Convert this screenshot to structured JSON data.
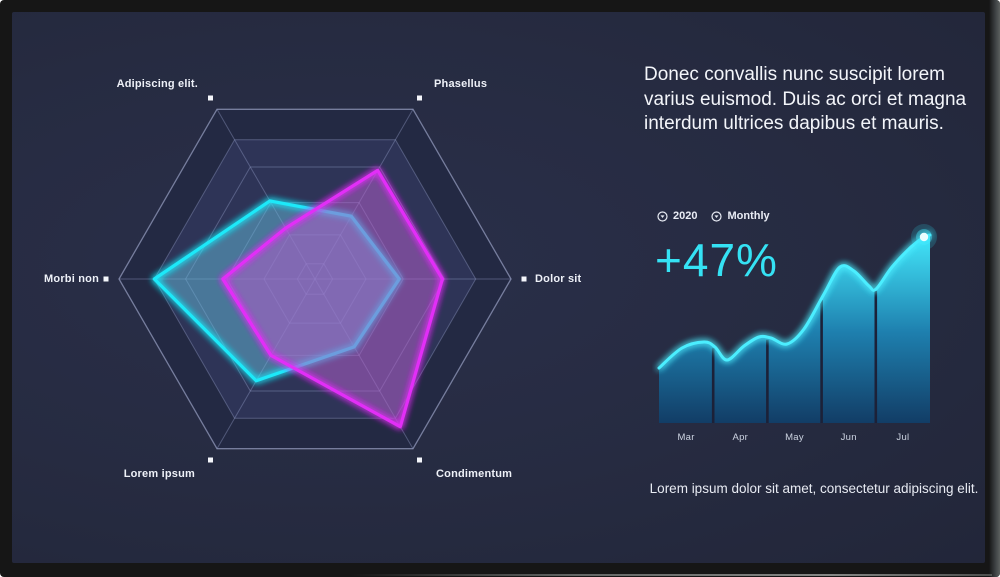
{
  "text": {
    "heading": "Donec convallis nunc suscipit lorem\nvarius euismod. Duis ac orci et magna\ninterdum ultrices dapibus et mauris.",
    "caption": "Lorem ipsum dolor sit amet, consectetur adipiscing elit."
  },
  "colors": {
    "screen_background": "#262b41",
    "bezel": "#161616",
    "accent_cyan": "#35e2f4",
    "accent_magenta": "#e22ff7",
    "text_primary": "#f3f5fa"
  },
  "chart_data": [
    {
      "type": "radar",
      "title": "",
      "axes": [
        "Phasellus",
        "Dolor sit",
        "Condimentum",
        "Lorem ipsum",
        "Morbi non",
        "Adipiscing elit."
      ],
      "max": 100,
      "grid_rings": [
        100,
        82,
        66,
        45,
        26,
        9
      ],
      "grid_shape": "hexagon",
      "legend_position": "none",
      "series": [
        {
          "name": "cyan-series",
          "color": "#1fe9f9",
          "fill": "rgba(100,185,220,0.50)",
          "values": [
            37,
            43,
            40,
            60,
            82,
            46
          ]
        },
        {
          "name": "magenta-series",
          "color": "#e22ff7",
          "fill": "rgba(175,95,200,0.55)",
          "values": [
            64,
            65,
            87,
            45,
            47,
            30
          ]
        }
      ]
    },
    {
      "type": "area",
      "stat": "+47%",
      "legend": [
        "2020",
        "Monthly"
      ],
      "categories": [
        "Mar",
        "Apr",
        "May",
        "Jun",
        "Jul"
      ],
      "line_color": "#4ceeff",
      "fill_top": "#43e7fa",
      "fill_mid": "#1e7fae",
      "fill_bottom": "#123d66",
      "separator_color": "#1c2138",
      "end_dot": true,
      "baseline_y": 201,
      "x_range": [
        7,
        278
      ],
      "curve_points": [
        [
          7,
          146
        ],
        [
          30,
          126
        ],
        [
          52,
          120
        ],
        [
          63,
          125
        ],
        [
          75,
          138
        ],
        [
          92,
          124
        ],
        [
          107,
          115
        ],
        [
          119,
          116
        ],
        [
          135,
          122
        ],
        [
          152,
          107
        ],
        [
          172,
          72
        ],
        [
          188,
          45
        ],
        [
          202,
          49
        ],
        [
          217,
          64
        ],
        [
          224,
          67
        ],
        [
          240,
          45
        ],
        [
          259,
          25
        ],
        [
          272,
          15
        ],
        [
          278,
          13
        ]
      ]
    }
  ]
}
